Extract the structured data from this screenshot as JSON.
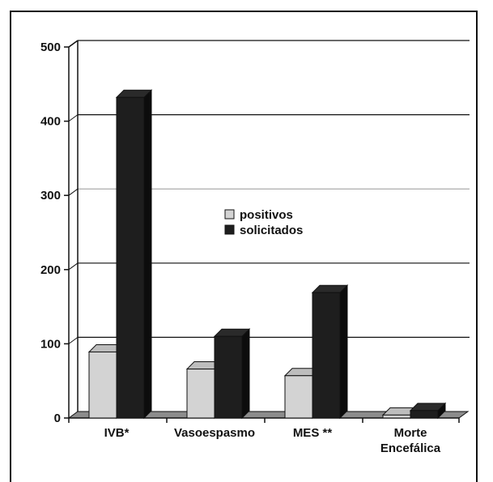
{
  "chart_data": {
    "type": "bar",
    "title": "",
    "xlabel": "",
    "ylabel": "",
    "ylim": [
      0,
      500
    ],
    "yticks": [
      "0",
      "100",
      "200",
      "300",
      "400",
      "500"
    ],
    "categories": [
      [
        "IVB*"
      ],
      [
        "Vasoespasmo"
      ],
      [
        "MES **"
      ],
      [
        "Morte",
        "Encefálica"
      ]
    ],
    "series": [
      {
        "name": "positivos",
        "values": [
          89,
          66,
          57,
          4
        ]
      },
      {
        "name": "solicitados",
        "values": [
          432,
          110,
          169,
          10
        ]
      }
    ],
    "colors": {
      "positivos": "#d3d3d3",
      "solicitados": "#1e1e1e",
      "floor": "#8c8c8c"
    },
    "grid": true,
    "legend_position": "center"
  }
}
